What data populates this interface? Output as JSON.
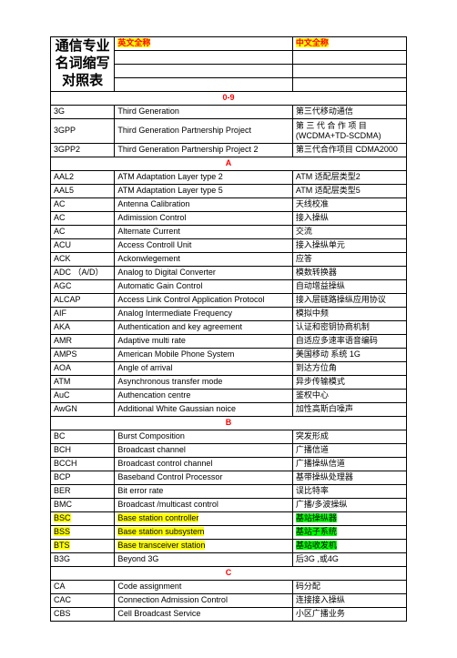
{
  "title": "通信专业名词缩写对照表",
  "header_en": "英文全称",
  "header_cn": "中文全称",
  "sections": {
    "s09": "0-9",
    "A": "A",
    "B": "B",
    "C": "C"
  },
  "rows": {
    "r1": {
      "abbr": "3G",
      "en": "Third Generation",
      "cn": "第三代移动通信"
    },
    "r2": {
      "abbr": "3GPP",
      "en": "Third Generation Partnership Project",
      "cn": "第 三 代 合 作 项 目 (WCDMA+TD-SCDMA)"
    },
    "r3": {
      "abbr": "3GPP2",
      "en": "Third Generation Partnership Project    2",
      "cn": "第三代合作项目 CDMA2000"
    },
    "r4": {
      "abbr": "AAL2",
      "en": "ATM Adaptation Layer type 2",
      "cn": "ATM  适配层类型2"
    },
    "r5": {
      "abbr": "AAL5",
      "en": "ATM Adaptation Layer type 5",
      "cn": "ATM  适配层类型5"
    },
    "r6": {
      "abbr": "AC",
      "en": "Antenna Calibration",
      "cn": "天线校准"
    },
    "r7": {
      "abbr": "AC",
      "en": "Adimission Control",
      "cn": "接入操纵"
    },
    "r8": {
      "abbr": "AC",
      "en": "Alternate Current",
      "cn": "交流"
    },
    "r9": {
      "abbr": "ACU",
      "en": "Access Controll Unit",
      "cn": "接入操纵单元"
    },
    "r10": {
      "abbr": "ACK",
      "en": "Ackonwlegement",
      "cn": "应答"
    },
    "r11": {
      "abbr": "ADC （A/D）",
      "en": "Analog to Digital Converter",
      "cn": "模数转换器"
    },
    "r12": {
      "abbr": "AGC",
      "en": "Automatic Gain Control",
      "cn": "自动增益操纵"
    },
    "r13": {
      "abbr": "ALCAP",
      "en": "Access Link Control Application Protocol",
      "cn": "接入层链路操纵应用协议"
    },
    "r14": {
      "abbr": "AIF",
      "en": "Analog Intermediate Frequency",
      "cn": "模拟中频"
    },
    "r15": {
      "abbr": "AKA",
      "en": "Authentication and key agreement",
      "cn": "认证和密钥协商机制"
    },
    "r16": {
      "abbr": "AMR",
      "en": "Adaptive multi rate",
      "cn": "自适应多速率语音编码"
    },
    "r17": {
      "abbr": "AMPS",
      "en": "American Mobile Phone System",
      "cn": "美国移动     系统  1G"
    },
    "r18": {
      "abbr": "AOA",
      "en": "Angle of arrival",
      "cn": "到达方位角"
    },
    "r19": {
      "abbr": "ATM",
      "en": "Asynchronous transfer mode",
      "cn": "异步传输模式"
    },
    "r20": {
      "abbr": "AuC",
      "en": "Authencation centre",
      "cn": "鉴权中心"
    },
    "r21": {
      "abbr": "AwGN",
      "en": "Additional White Gaussian noice",
      "cn": "加性高斯白噪声"
    },
    "r22": {
      "abbr": "BC",
      "en": "Burst Composition",
      "cn": "突发形成"
    },
    "r23": {
      "abbr": "BCH",
      "en": "Broadcast channel",
      "cn": "广播信道"
    },
    "r24": {
      "abbr": "BCCH",
      "en": "Broadcast control channel",
      "cn": "广播操纵信道"
    },
    "r25": {
      "abbr": "BCP",
      "en": "Baseband Control Processor",
      "cn": "基带操纵处理器"
    },
    "r26": {
      "abbr": "BER",
      "en": "Bit error rate",
      "cn": "误比特率"
    },
    "r27": {
      "abbr": "BMC",
      "en": "Broadcast /multicast control",
      "cn": "广播/多波操纵"
    },
    "r28": {
      "abbr": "BSC",
      "en": "Base station controller",
      "cn": "基站操纵器"
    },
    "r29": {
      "abbr": "BSS",
      "en": "Base station subsystem",
      "cn": "基站子系统"
    },
    "r30": {
      "abbr": "BTS",
      "en": "Base transceiver station",
      "cn": "基站收发机"
    },
    "r31": {
      "abbr": "B3G",
      "en": "Beyond 3G",
      "cn": "后3G ,或4G"
    },
    "r32": {
      "abbr": "CA",
      "en": "Code assignment",
      "cn": "码分配"
    },
    "r33": {
      "abbr": "CAC",
      "en": "Connection Admission Control",
      "cn": "连接接入操纵"
    },
    "r34": {
      "abbr": "CBS",
      "en": "Cell Broadcast Service",
      "cn": "小区广播业务"
    }
  }
}
